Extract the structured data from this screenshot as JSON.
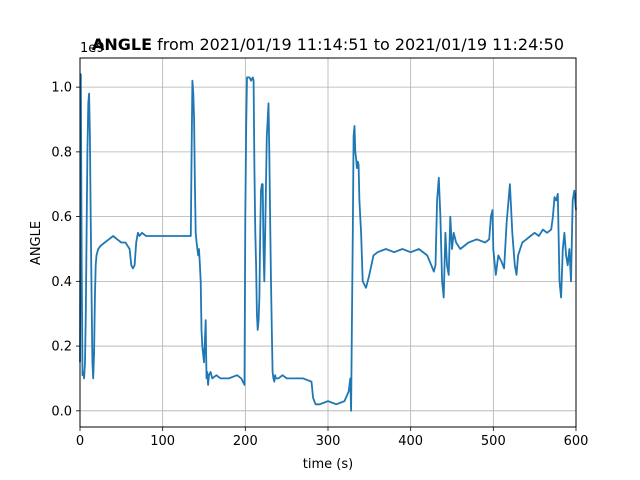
{
  "chart_data": {
    "type": "line",
    "title": {
      "bold": "ANGLE",
      "rest": " from 2021/01/19 11:14:51 to 2021/01/19 11:24:50"
    },
    "xlabel": "time (s)",
    "ylabel": "ANGLE",
    "y_offset_text": "1e9",
    "xlim": [
      0,
      600
    ],
    "ylim": [
      -0.05,
      1.09
    ],
    "xticks": [
      0,
      100,
      200,
      300,
      400,
      500,
      600
    ],
    "xtick_labels": [
      "0",
      "100",
      "200",
      "300",
      "400",
      "500",
      "600"
    ],
    "yticks": [
      0.0,
      0.2,
      0.4,
      0.6,
      0.8,
      1.0
    ],
    "ytick_labels": [
      "0.0",
      "0.2",
      "0.4",
      "0.6",
      "0.8",
      "1.0"
    ],
    "grid": true,
    "line_color": "#1f77b4",
    "series": [
      {
        "x": [
          0,
          1,
          2,
          3,
          4,
          5,
          6,
          7,
          8,
          9,
          10,
          11,
          12,
          13,
          14,
          15,
          16,
          17,
          18,
          19,
          20,
          22,
          25,
          30,
          35,
          40,
          45,
          50,
          55,
          60,
          62,
          64,
          66,
          68,
          70,
          72,
          75,
          80,
          90,
          100,
          110,
          120,
          130,
          134,
          135,
          136,
          137,
          138,
          139,
          140,
          141,
          142,
          143,
          144,
          145,
          146,
          147,
          148,
          150,
          152,
          153,
          154,
          155,
          156,
          158,
          160,
          165,
          170,
          180,
          190,
          195,
          199,
          200,
          201,
          202,
          203,
          205,
          207,
          209,
          210,
          211,
          212,
          213,
          214,
          215,
          216,
          217,
          218,
          219,
          220,
          221,
          222,
          223,
          224,
          225,
          226,
          227,
          228,
          229,
          230,
          231,
          232,
          233,
          234,
          235,
          236,
          237,
          238,
          240,
          245,
          250,
          260,
          270,
          280,
          282,
          285,
          290,
          300,
          310,
          320,
          325,
          327,
          328,
          329,
          330,
          331,
          332,
          333,
          334,
          335,
          336,
          337,
          338,
          340,
          342,
          344,
          346,
          348,
          350,
          355,
          360,
          370,
          380,
          390,
          400,
          410,
          420,
          425,
          428,
          430,
          432,
          434,
          436,
          438,
          440,
          442,
          444,
          446,
          448,
          450,
          452,
          455,
          460,
          470,
          480,
          490,
          495,
          497,
          499,
          500,
          503,
          506,
          510,
          513,
          516,
          520,
          523,
          526,
          528,
          530,
          535,
          540,
          545,
          550,
          555,
          560,
          565,
          570,
          572,
          574,
          576,
          578,
          580,
          582,
          584,
          586,
          588,
          590,
          592,
          594,
          596,
          598,
          600
        ],
        "y": [
          0.15,
          1.04,
          0.45,
          0.11,
          0.12,
          0.1,
          0.15,
          0.3,
          0.55,
          0.8,
          0.95,
          0.98,
          0.85,
          0.6,
          0.35,
          0.15,
          0.1,
          0.18,
          0.35,
          0.45,
          0.48,
          0.5,
          0.51,
          0.52,
          0.53,
          0.54,
          0.53,
          0.52,
          0.52,
          0.5,
          0.45,
          0.44,
          0.45,
          0.52,
          0.55,
          0.54,
          0.55,
          0.54,
          0.54,
          0.54,
          0.54,
          0.54,
          0.54,
          0.54,
          0.8,
          1.02,
          0.98,
          0.9,
          0.7,
          0.55,
          0.52,
          0.5,
          0.48,
          0.5,
          0.45,
          0.4,
          0.25,
          0.2,
          0.15,
          0.28,
          0.1,
          0.12,
          0.08,
          0.11,
          0.12,
          0.1,
          0.11,
          0.1,
          0.1,
          0.11,
          0.1,
          0.08,
          0.6,
          0.88,
          1.03,
          1.03,
          1.03,
          1.02,
          1.03,
          1.02,
          0.75,
          0.55,
          0.45,
          0.3,
          0.25,
          0.28,
          0.35,
          0.55,
          0.68,
          0.7,
          0.7,
          0.5,
          0.4,
          0.55,
          0.7,
          0.85,
          0.9,
          0.95,
          0.8,
          0.6,
          0.4,
          0.25,
          0.12,
          0.1,
          0.09,
          0.11,
          0.1,
          0.1,
          0.1,
          0.11,
          0.1,
          0.1,
          0.1,
          0.09,
          0.04,
          0.02,
          0.02,
          0.03,
          0.02,
          0.03,
          0.06,
          0.1,
          0.0,
          0.3,
          0.55,
          0.85,
          0.88,
          0.8,
          0.78,
          0.75,
          0.77,
          0.76,
          0.65,
          0.55,
          0.4,
          0.39,
          0.38,
          0.4,
          0.42,
          0.48,
          0.49,
          0.5,
          0.49,
          0.5,
          0.49,
          0.5,
          0.48,
          0.45,
          0.43,
          0.45,
          0.65,
          0.72,
          0.6,
          0.4,
          0.35,
          0.55,
          0.45,
          0.42,
          0.6,
          0.5,
          0.55,
          0.52,
          0.5,
          0.52,
          0.53,
          0.52,
          0.53,
          0.6,
          0.62,
          0.5,
          0.42,
          0.48,
          0.46,
          0.44,
          0.58,
          0.7,
          0.55,
          0.45,
          0.42,
          0.48,
          0.52,
          0.53,
          0.54,
          0.55,
          0.54,
          0.56,
          0.55,
          0.56,
          0.6,
          0.66,
          0.65,
          0.67,
          0.4,
          0.35,
          0.5,
          0.55,
          0.48,
          0.45,
          0.5,
          0.4,
          0.65,
          0.68,
          0.62
        ]
      }
    ]
  }
}
